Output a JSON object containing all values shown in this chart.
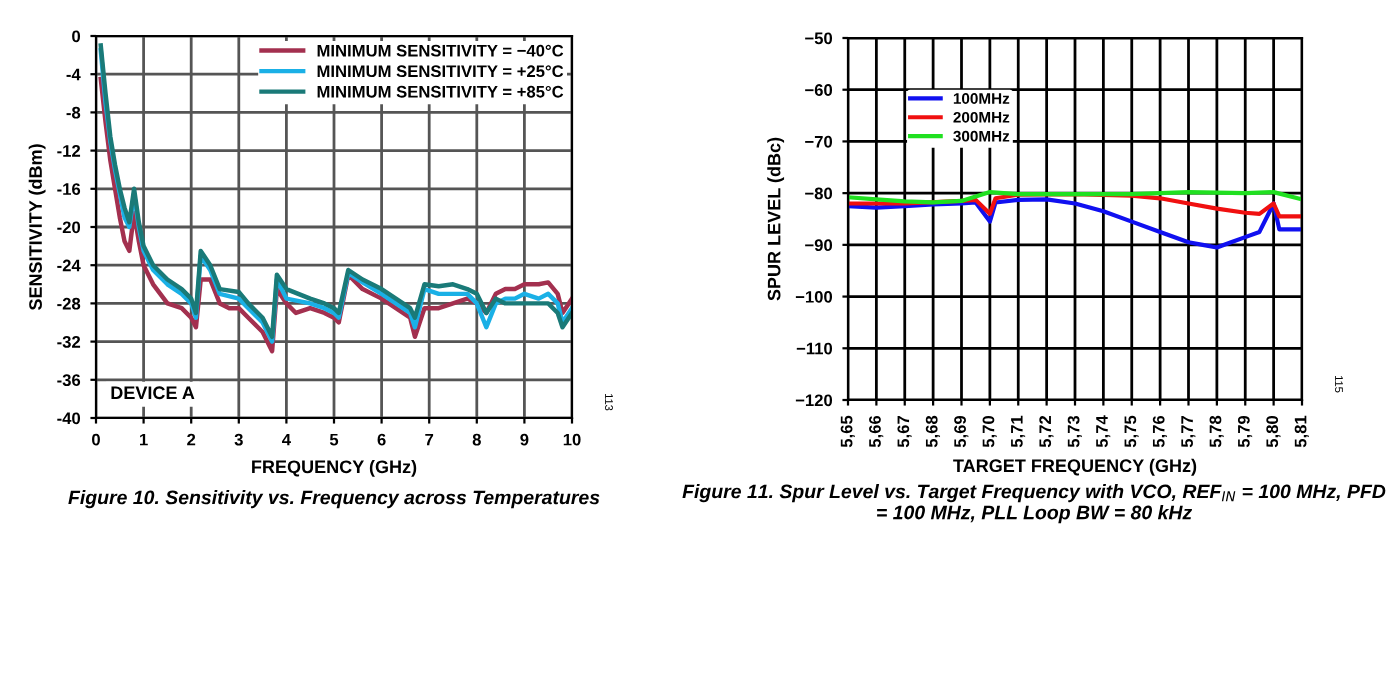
{
  "chart_data": [
    {
      "type": "line",
      "title": "Figure 10. Sensitivity vs. Frequency across Temperatures",
      "xlabel": "FREQUENCY (GHz)",
      "ylabel": "SENSITIVITY (dBm)",
      "xlim": [
        0,
        10
      ],
      "xticks": [
        0,
        1,
        2,
        3,
        4,
        5,
        6,
        7,
        8,
        9,
        10
      ],
      "ylim": [
        -40,
        0
      ],
      "yticks": [
        -40,
        -36,
        -32,
        -28,
        -24,
        -20,
        -16,
        -12,
        -8,
        -4,
        0
      ],
      "grid": true,
      "legend": "top right",
      "annotations": [
        "DEVICE A",
        "113"
      ],
      "series": [
        {
          "name": "MINIMUM SENSITIVITY = −40°C",
          "color": "#a3304f",
          "x": [
            0.1,
            0.2,
            0.3,
            0.4,
            0.5,
            0.6,
            0.7,
            0.8,
            0.9,
            1.0,
            1.2,
            1.5,
            1.8,
            2.0,
            2.1,
            2.2,
            2.4,
            2.6,
            2.8,
            3.0,
            3.2,
            3.5,
            3.7,
            3.8,
            4.0,
            4.2,
            4.5,
            4.8,
            5.0,
            5.1,
            5.3,
            5.6,
            6.0,
            6.3,
            6.6,
            6.7,
            6.9,
            7.2,
            7.5,
            7.8,
            8.0,
            8.2,
            8.4,
            8.6,
            8.8,
            9.0,
            9.3,
            9.5,
            9.7,
            9.8,
            10
          ],
          "values": [
            -4.5,
            -9,
            -13,
            -16,
            -19,
            -21.5,
            -22.5,
            -18.5,
            -21.5,
            -24,
            -26,
            -28,
            -28.5,
            -29.5,
            -30.5,
            -25.5,
            -25.5,
            -28,
            -28.5,
            -28.5,
            -29.5,
            -31,
            -33,
            -26.5,
            -28,
            -29,
            -28.5,
            -29,
            -29.5,
            -30,
            -25,
            -26.5,
            -27.5,
            -28.5,
            -29.5,
            -31.5,
            -28.5,
            -28.5,
            -28,
            -27.5,
            -28,
            -29,
            -27,
            -26.5,
            -26.5,
            -26,
            -26,
            -25.8,
            -27,
            -29,
            -27.5
          ]
        },
        {
          "name": "MINIMUM SENSITIVITY = +25°C",
          "color": "#1ab0e6",
          "x": [
            0.1,
            0.2,
            0.3,
            0.4,
            0.5,
            0.6,
            0.7,
            0.8,
            0.9,
            1.0,
            1.2,
            1.5,
            1.8,
            2.0,
            2.1,
            2.2,
            2.4,
            2.6,
            3.0,
            3.2,
            3.5,
            3.7,
            3.8,
            4.0,
            4.5,
            4.8,
            5.0,
            5.1,
            5.3,
            5.6,
            6.0,
            6.3,
            6.6,
            6.7,
            6.9,
            7.2,
            7.5,
            7.8,
            8.0,
            8.2,
            8.4,
            8.6,
            8.8,
            9.0,
            9.3,
            9.5,
            9.7,
            9.8,
            10
          ],
          "values": [
            -1.5,
            -7,
            -11,
            -14,
            -16.5,
            -19,
            -20,
            -16.5,
            -20,
            -22.5,
            -24.5,
            -26,
            -27,
            -28,
            -29.5,
            -23,
            -24.5,
            -27,
            -27.5,
            -28.5,
            -30,
            -32,
            -25.5,
            -27.5,
            -28,
            -28.5,
            -29,
            -29.5,
            -24.8,
            -25.8,
            -27,
            -28,
            -29,
            -30.5,
            -26.5,
            -27,
            -27,
            -27,
            -28,
            -30.5,
            -28,
            -27.5,
            -27.5,
            -27,
            -27.5,
            -27,
            -28,
            -30,
            -28.5
          ]
        },
        {
          "name": "MINIMUM SENSITIVITY = +85°C",
          "color": "#1a7a78",
          "x": [
            0.1,
            0.2,
            0.3,
            0.4,
            0.5,
            0.6,
            0.7,
            0.8,
            0.9,
            1.0,
            1.2,
            1.5,
            1.8,
            2.0,
            2.1,
            2.2,
            2.4,
            2.6,
            3.0,
            3.2,
            3.5,
            3.7,
            3.8,
            4.0,
            4.5,
            4.8,
            5.0,
            5.1,
            5.3,
            5.6,
            6.0,
            6.3,
            6.6,
            6.7,
            6.9,
            7.2,
            7.5,
            7.8,
            8.0,
            8.2,
            8.4,
            8.6,
            9.0,
            9.3,
            9.5,
            9.7,
            9.8,
            10
          ],
          "values": [
            -1,
            -6,
            -10.5,
            -13.5,
            -16,
            -18,
            -19.5,
            -16,
            -19.5,
            -22,
            -24,
            -25.5,
            -26.5,
            -27.5,
            -29,
            -22.5,
            -24,
            -26.5,
            -26.8,
            -28,
            -29.5,
            -31.5,
            -25,
            -26.5,
            -27.5,
            -28,
            -28.5,
            -29,
            -24.5,
            -25.5,
            -26.5,
            -27.5,
            -28.5,
            -29.5,
            -26,
            -26.2,
            -26,
            -26.5,
            -27,
            -29,
            -27.5,
            -28,
            -28,
            -28,
            -28,
            -29,
            -30.5,
            -29
          ]
        }
      ]
    },
    {
      "type": "line",
      "title": "Figure 11. Spur Level vs. Target Frequency with VCO, REF$_{IN}$ = 100 MHz, PFD = 100 MHz, PLL Loop BW = 80 kHz",
      "xlabel": "TARGET FREQUENCY (GHz)",
      "ylabel": "SPUR LEVEL (dBc)",
      "xlim": [
        5.65,
        5.81
      ],
      "xticks": [
        {
          "value": 5.65,
          "label": "5,65"
        },
        {
          "value": 5.66,
          "label": "5,66"
        },
        {
          "value": 5.67,
          "label": "5,67"
        },
        {
          "value": 5.68,
          "label": "5,68"
        },
        {
          "value": 5.69,
          "label": "5,69"
        },
        {
          "value": 5.7,
          "label": "5,70"
        },
        {
          "value": 5.71,
          "label": "5,71"
        },
        {
          "value": 5.72,
          "label": "5,72"
        },
        {
          "value": 5.73,
          "label": "5,73"
        },
        {
          "value": 5.74,
          "label": "5,74"
        },
        {
          "value": 5.75,
          "label": "5,75"
        },
        {
          "value": 5.76,
          "label": "5,76"
        },
        {
          "value": 5.77,
          "label": "5,77"
        },
        {
          "value": 5.78,
          "label": "5,78"
        },
        {
          "value": 5.79,
          "label": "5,79"
        },
        {
          "value": 5.8,
          "label": "5,80"
        },
        {
          "value": 5.81,
          "label": "5,81"
        }
      ],
      "ylim": [
        -120,
        -50
      ],
      "yticks": [
        {
          "value": -120,
          "label": "−120"
        },
        {
          "value": -110,
          "label": "−110"
        },
        {
          "value": -100,
          "label": "−100"
        },
        {
          "value": -90,
          "label": "−90"
        },
        {
          "value": -80,
          "label": "−80"
        },
        {
          "value": -70,
          "label": "−70"
        },
        {
          "value": -60,
          "label": "−60"
        },
        {
          "value": -50,
          "label": "−50"
        }
      ],
      "grid": true,
      "legend": "top left",
      "annotations": [
        "115"
      ],
      "series": [
        {
          "name": "100MHz",
          "color": "#1010f0",
          "x": [
            5.65,
            5.66,
            5.67,
            5.68,
            5.69,
            5.695,
            5.7,
            5.702,
            5.71,
            5.72,
            5.73,
            5.74,
            5.75,
            5.76,
            5.77,
            5.775,
            5.78,
            5.785,
            5.79,
            5.795,
            5.8,
            5.802,
            5.81
          ],
          "values": [
            -82.5,
            -82.8,
            -82.5,
            -82.2,
            -82,
            -81.8,
            -85.5,
            -81.8,
            -81.3,
            -81.2,
            -82,
            -83.5,
            -85.5,
            -87.5,
            -89.5,
            -90,
            -90.5,
            -89.5,
            -88.5,
            -87.5,
            -82,
            -87,
            -87
          ]
        },
        {
          "name": "200MHz",
          "color": "#f01010",
          "x": [
            5.65,
            5.67,
            5.69,
            5.695,
            5.7,
            5.702,
            5.71,
            5.73,
            5.75,
            5.76,
            5.77,
            5.78,
            5.79,
            5.795,
            5.8,
            5.802,
            5.81
          ],
          "values": [
            -82,
            -82,
            -81.5,
            -81.3,
            -84,
            -81,
            -80.3,
            -80.2,
            -80.5,
            -81,
            -82,
            -83,
            -83.8,
            -84,
            -82,
            -84.5,
            -84.5
          ]
        },
        {
          "name": "300MHz",
          "color": "#20e020",
          "x": [
            5.65,
            5.66,
            5.67,
            5.68,
            5.69,
            5.7,
            5.71,
            5.73,
            5.75,
            5.77,
            5.79,
            5.8,
            5.81
          ],
          "values": [
            -80.8,
            -81.2,
            -81.6,
            -81.8,
            -81.5,
            -79.8,
            -80.2,
            -80.2,
            -80.2,
            -79.8,
            -80,
            -79.8,
            -81.2
          ]
        }
      ]
    }
  ]
}
